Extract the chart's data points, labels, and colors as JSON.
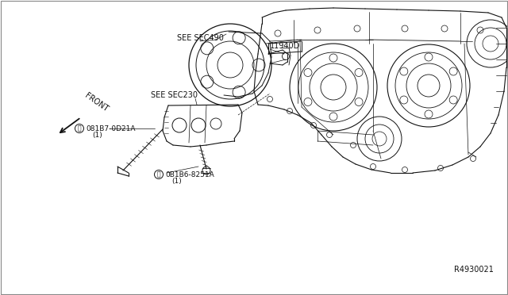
{
  "bg_color": "#ffffff",
  "ref_number": "R4930021",
  "labels": {
    "see_sec490": "SEE SEC490",
    "part_11940D": "11940D",
    "see_sec230": "SEE SEC230",
    "front": "FRONT"
  },
  "part_A_line1": "©081B7-0D21A",
  "part_A_line2": "(1)",
  "part_B_line1": "®0B1B6-8251A",
  "part_B_line2": "(1)",
  "font_sizes": {
    "label": 7,
    "ref": 7,
    "part": 6.5,
    "front": 7
  },
  "lc": "#111111"
}
